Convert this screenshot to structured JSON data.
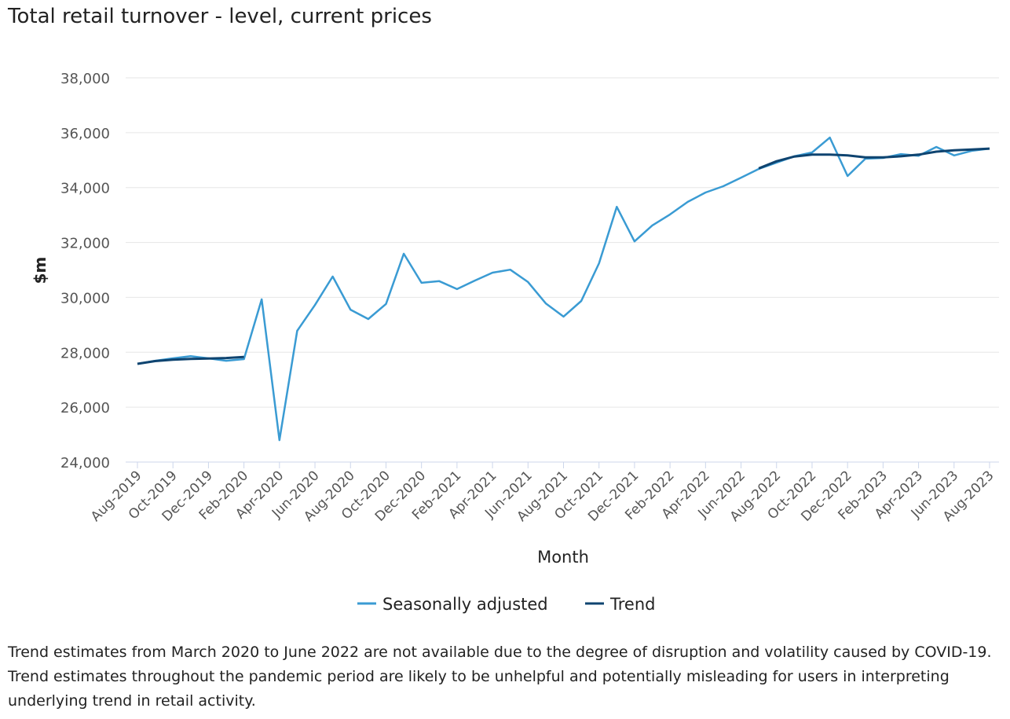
{
  "chart_data": {
    "type": "line",
    "title": "Total retail turnover - level, current prices",
    "xlabel": "Month",
    "ylabel": "$m",
    "ylim": [
      24000,
      38000
    ],
    "yticks": [
      "24,000",
      "26,000",
      "28,000",
      "30,000",
      "32,000",
      "34,000",
      "36,000",
      "38,000"
    ],
    "ytick_values": [
      24000,
      26000,
      28000,
      30000,
      32000,
      34000,
      36000,
      38000
    ],
    "grid": true,
    "legend_position": "bottom",
    "x": [
      "Aug-2019",
      "Sep-2019",
      "Oct-2019",
      "Nov-2019",
      "Dec-2019",
      "Jan-2020",
      "Feb-2020",
      "Mar-2020",
      "Apr-2020",
      "May-2020",
      "Jun-2020",
      "Jul-2020",
      "Aug-2020",
      "Sep-2020",
      "Oct-2020",
      "Nov-2020",
      "Dec-2020",
      "Jan-2021",
      "Feb-2021",
      "Mar-2021",
      "Apr-2021",
      "May-2021",
      "Jun-2021",
      "Jul-2021",
      "Aug-2021",
      "Sep-2021",
      "Oct-2021",
      "Nov-2021",
      "Dec-2021",
      "Jan-2022",
      "Feb-2022",
      "Mar-2022",
      "Apr-2022",
      "May-2022",
      "Jun-2022",
      "Jul-2022",
      "Aug-2022",
      "Sep-2022",
      "Oct-2022",
      "Nov-2022",
      "Dec-2022",
      "Jan-2023",
      "Feb-2023",
      "Mar-2023",
      "Apr-2023",
      "May-2023",
      "Jun-2023",
      "Jul-2023",
      "Aug-2023"
    ],
    "xticks": [
      "Aug-2019",
      "Oct-2019",
      "Dec-2019",
      "Feb-2020",
      "Apr-2020",
      "Jun-2020",
      "Aug-2020",
      "Oct-2020",
      "Dec-2020",
      "Feb-2021",
      "Apr-2021",
      "Jun-2021",
      "Aug-2021",
      "Oct-2021",
      "Dec-2021",
      "Feb-2022",
      "Apr-2022",
      "Jun-2022",
      "Aug-2022",
      "Oct-2022",
      "Dec-2022",
      "Feb-2023",
      "Apr-2023",
      "Jun-2023",
      "Aug-2023"
    ],
    "series": [
      {
        "name": "Seasonally adjusted",
        "color": "#3a9bd3",
        "values": [
          27580,
          27690,
          27780,
          27860,
          27780,
          27690,
          27750,
          29930,
          24800,
          28780,
          29720,
          30760,
          29550,
          29210,
          29760,
          31590,
          30530,
          30590,
          30300,
          30610,
          30900,
          31010,
          30560,
          29780,
          29300,
          29870,
          31240,
          33300,
          32040,
          32620,
          33020,
          33480,
          33820,
          34050,
          34360,
          34680,
          34910,
          35140,
          35280,
          35820,
          34420,
          35050,
          35080,
          35220,
          35160,
          35480,
          35170,
          35340,
          35420
        ]
      },
      {
        "name": "Trend",
        "color": "#0f4470",
        "values": [
          27580,
          27680,
          27730,
          27760,
          27770,
          27790,
          27830,
          null,
          null,
          null,
          null,
          null,
          null,
          null,
          null,
          null,
          null,
          null,
          null,
          null,
          null,
          null,
          null,
          null,
          null,
          null,
          null,
          null,
          null,
          null,
          null,
          null,
          null,
          null,
          null,
          34700,
          34960,
          35130,
          35200,
          35200,
          35170,
          35100,
          35100,
          35140,
          35200,
          35310,
          35360,
          35390,
          35420
        ]
      }
    ]
  },
  "note": [
    "Trend estimates from March 2020 to June 2022 are not available due to the degree of disruption and volatility caused by COVID-19.",
    "Trend estimates throughout the pandemic period are likely to be unhelpful and potentially misleading for users in interpreting underlying trend in retail activity."
  ]
}
